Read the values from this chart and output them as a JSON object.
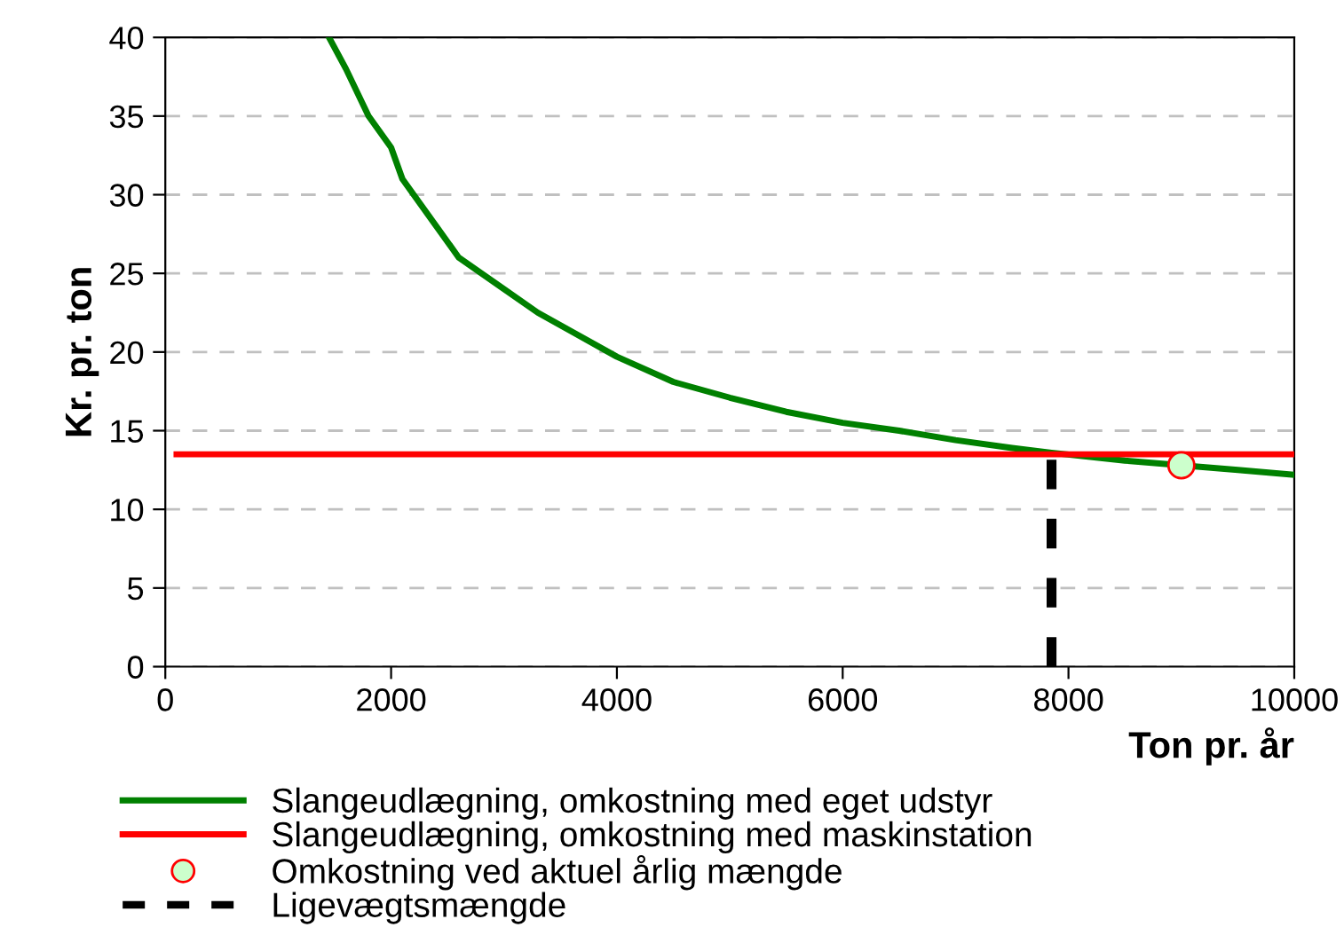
{
  "chart_data": {
    "type": "line",
    "xlabel": "Ton pr. år",
    "ylabel": "Kr. pr. ton",
    "xlim": [
      0,
      10000
    ],
    "xticks": [
      0,
      2000,
      4000,
      6000,
      8000,
      10000
    ],
    "ylim": [
      0,
      40
    ],
    "yticks": [
      0,
      5,
      10,
      15,
      20,
      25,
      30,
      35,
      40
    ],
    "grid": "y",
    "legend": "bottom",
    "series": [
      {
        "name": "Slangeudlægning, omkostning med eget udstyr",
        "color": "#008000",
        "line_style": "solid",
        "marker": "none",
        "x": [
          1450,
          1600,
          1800,
          2000,
          2100,
          2200,
          2600,
          2800,
          3000,
          3300,
          3600,
          4000,
          4500,
          5000,
          5500,
          6000,
          6500,
          7000,
          7500,
          7850,
          8500,
          9500,
          10000
        ],
        "values": [
          40,
          38,
          35,
          33,
          31,
          30,
          26,
          25,
          24,
          22.5,
          21.3,
          19.7,
          18.1,
          17.1,
          16.2,
          15.5,
          15,
          14.4,
          13.9,
          13.6,
          13.1,
          12.5,
          12.2
        ]
      },
      {
        "name": "Slangeudlægning, omkostning med maskinstation",
        "color": "#ff0000",
        "line_style": "solid",
        "marker": "none",
        "x": [
          100,
          10000
        ],
        "values": [
          13.5,
          13.5
        ]
      },
      {
        "name": "Omkostning ved aktuel årlig mængde",
        "color": "#ccffcc",
        "type": "scatter",
        "marker": "circle",
        "x": [
          9000
        ],
        "values": [
          12.8
        ]
      },
      {
        "name": "Ligevægtsmængde",
        "color": "#000000",
        "line_style": "dashed",
        "marker": "none",
        "x": [
          7850,
          7850
        ],
        "values": [
          0,
          13.5
        ]
      }
    ]
  }
}
